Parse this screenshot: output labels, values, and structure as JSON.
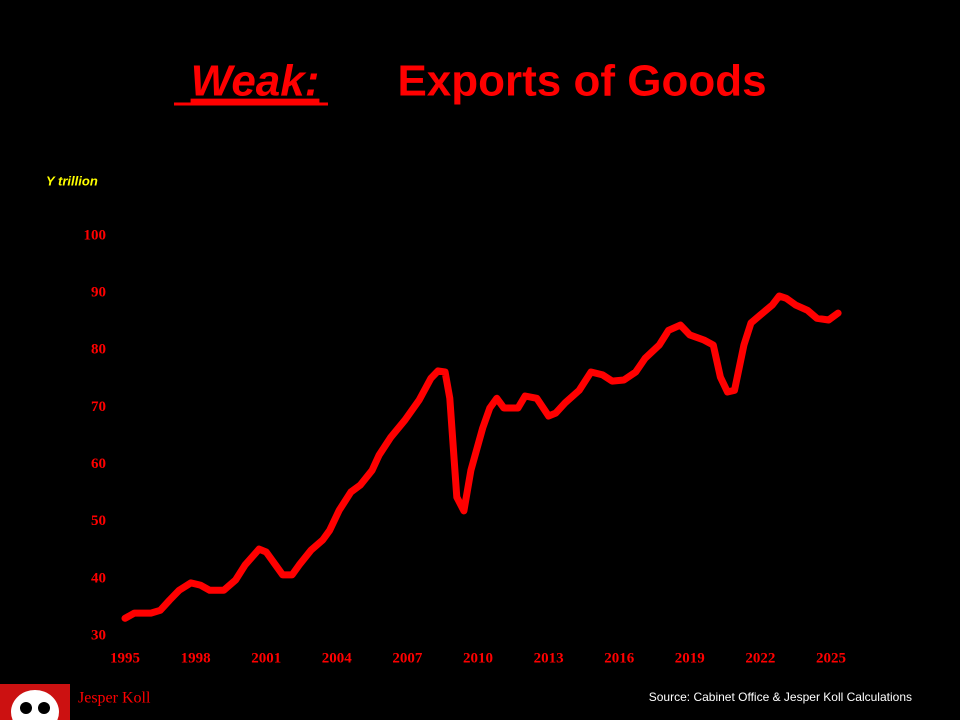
{
  "chart_data": {
    "type": "line",
    "title_emphasis": "Weak:",
    "title": "Exports of Goods",
    "y_label": "Y trillion",
    "source": "Source: Cabinet Office & Jesper Koll Calculations",
    "author": "Jesper Koll",
    "xlim": [
      1995,
      2025
    ],
    "xticks": [
      1995,
      1998,
      2001,
      2004,
      2007,
      2010,
      2013,
      2016,
      2019,
      2022,
      2025
    ],
    "ylim": [
      30,
      100
    ],
    "yticks": [
      30,
      40,
      50,
      60,
      70,
      80,
      90,
      100
    ],
    "grid": false,
    "series": [
      {
        "name": "Exports of Goods",
        "color": "#ff0000",
        "x": [
          1995.0,
          1995.4,
          1996.1,
          1996.5,
          1996.9,
          1997.3,
          1997.8,
          1998.2,
          1998.6,
          1999.2,
          1999.7,
          2000.1,
          2000.7,
          2001.0,
          2001.4,
          2001.7,
          2002.1,
          2002.4,
          2002.9,
          2003.4,
          2003.7,
          2004.1,
          2004.6,
          2005.0,
          2005.5,
          2005.8,
          2006.3,
          2006.9,
          2007.5,
          2008.0,
          2008.3,
          2008.6,
          2008.8,
          2009.1,
          2009.4,
          2009.7,
          2010.2,
          2010.5,
          2010.8,
          2011.1,
          2011.7,
          2012.0,
          2012.5,
          2013.0,
          2013.3,
          2013.7,
          2014.3,
          2014.8,
          2015.3,
          2015.7,
          2016.2,
          2016.7,
          2017.1,
          2017.7,
          2018.1,
          2018.6,
          2019.0,
          2019.6,
          2020.0,
          2020.3,
          2020.6,
          2020.9,
          2021.3,
          2021.6,
          2022.0,
          2022.5,
          2022.8,
          2023.1,
          2023.5,
          2024.0,
          2024.4,
          2024.9,
          2025.3
        ],
        "values": [
          33.1,
          34,
          34,
          34.5,
          36.3,
          38,
          39.3,
          38.9,
          38,
          38,
          39.8,
          42.4,
          45.2,
          44.7,
          42.4,
          40.7,
          40.7,
          42.4,
          45,
          46.8,
          48.5,
          52,
          55.2,
          56.4,
          59,
          61.7,
          64.8,
          67.8,
          71.3,
          75.1,
          76.4,
          76.2,
          71.6,
          54.3,
          51.9,
          59,
          66.4,
          69.9,
          71.6,
          69.9,
          69.9,
          72,
          71.6,
          68.5,
          69,
          70.8,
          73,
          76.2,
          75.7,
          74.6,
          74.8,
          76.2,
          78.6,
          80.9,
          83.5,
          84.4,
          82.7,
          81.8,
          80.9,
          75.3,
          72.7,
          73,
          80.9,
          84.8,
          86.2,
          87.9,
          89.5,
          89.1,
          87.9,
          87,
          85.6,
          85.3,
          86.5
        ]
      }
    ]
  }
}
